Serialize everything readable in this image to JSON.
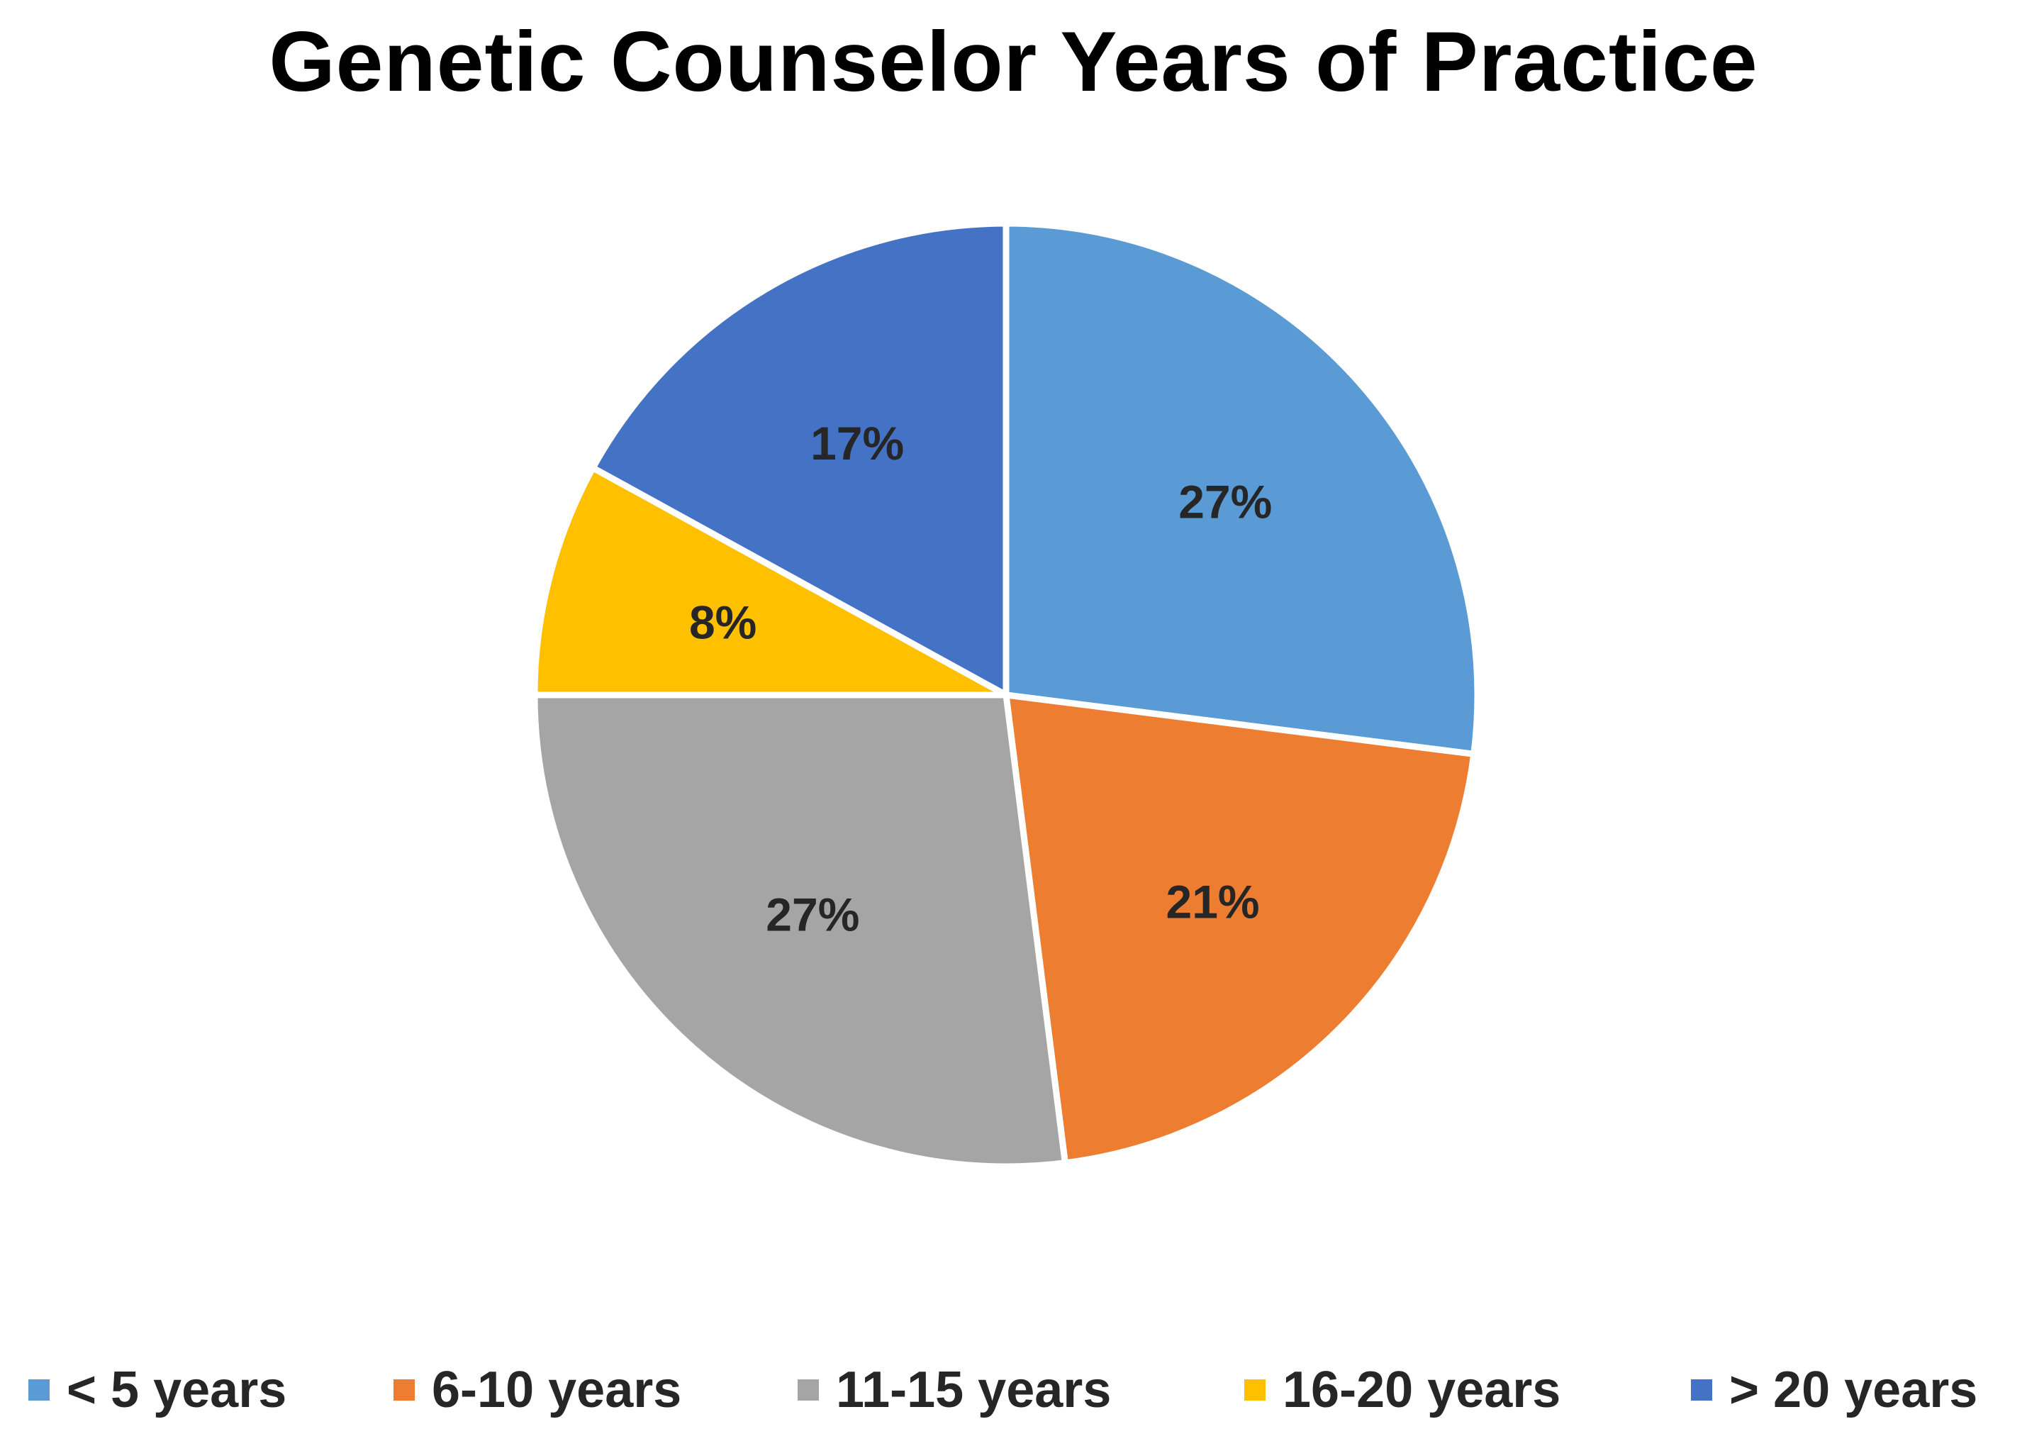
{
  "chart_data": {
    "type": "pie",
    "title": "Genetic Counselor Years of Practice",
    "categories": [
      "< 5 years",
      "6-10 years",
      "11-15 years",
      "16-20 years",
      "> 20 years"
    ],
    "values": [
      27,
      21,
      27,
      8,
      17
    ],
    "labels": [
      "27%",
      "21%",
      "27%",
      "8%",
      "17%"
    ],
    "colors": [
      "#5B9BD5",
      "#ED7D31",
      "#A5A5A5",
      "#FFC000",
      "#4472C4"
    ],
    "start_angle_deg": 0,
    "direction": "clockwise",
    "legend_position": "bottom"
  }
}
